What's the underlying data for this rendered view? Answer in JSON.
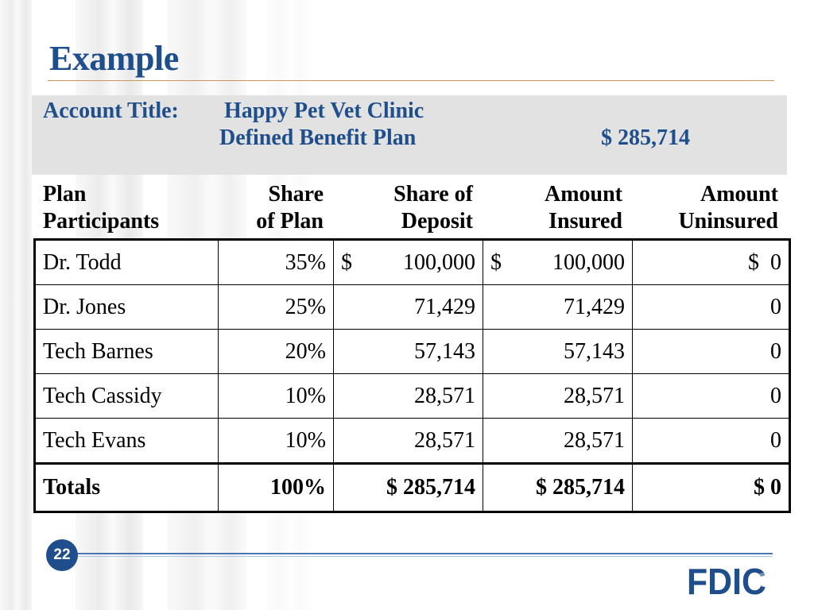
{
  "slide": {
    "title": "Example",
    "page_number": "22",
    "brand_color": "#1f4e8c",
    "logo_text": "FDIC"
  },
  "account": {
    "label": "Account Title:",
    "name": "Happy Pet Vet Clinic",
    "plan": "Defined Benefit Plan",
    "total": "$ 285,714"
  },
  "headers": {
    "participants": [
      "Plan",
      "Participants"
    ],
    "share_of_plan": [
      "Share",
      "of Plan"
    ],
    "share_of_deposit": [
      "Share of",
      "Deposit"
    ],
    "amount_insured": [
      "Amount",
      "Insured"
    ],
    "amount_uninsured": [
      "Amount",
      "Uninsured"
    ]
  },
  "rows": [
    {
      "name": "Dr. Todd",
      "share": "35%",
      "deposit_cur": "$",
      "deposit": "100,000",
      "insured_cur": "$",
      "insured": "100,000",
      "uninsured": "$  0"
    },
    {
      "name": "Dr. Jones",
      "share": "25%",
      "deposit": "71,429",
      "insured": "71,429",
      "uninsured": "0"
    },
    {
      "name": "Tech Barnes",
      "share": "20%",
      "deposit": "57,143",
      "insured": "57,143",
      "uninsured": "0"
    },
    {
      "name": "Tech Cassidy",
      "share": "10%",
      "deposit": "28,571",
      "insured": "28,571",
      "uninsured": "0"
    },
    {
      "name": "Tech Evans",
      "share": "10%",
      "deposit": "28,571",
      "insured": "28,571",
      "uninsured": "0"
    }
  ],
  "totals": {
    "label": "Totals",
    "share": "100%",
    "deposit": "$ 285,714",
    "insured": "$ 285,714",
    "uninsured": "$ 0"
  }
}
